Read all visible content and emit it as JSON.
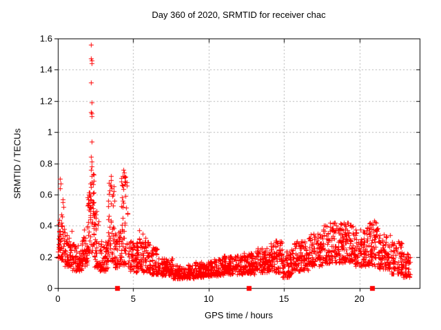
{
  "page": {
    "background": "#ffffff",
    "text_color": "#000000"
  },
  "chart_data": {
    "type": "scatter",
    "title": "Day 360 of 2020, SRMTID for receiver chac",
    "xlabel": "GPS time / hours",
    "ylabel": "SRMTID / TECUs",
    "xlim": [
      0,
      24
    ],
    "ylim": [
      0,
      1.6
    ],
    "grid": {
      "show": true,
      "color": "#b4b4b4",
      "style": "dotted"
    },
    "axis_color": "#000000",
    "legend": "none",
    "xticks": [
      {
        "v": 0,
        "label": "0"
      },
      {
        "v": 5,
        "label": "5"
      },
      {
        "v": 10,
        "label": "10"
      },
      {
        "v": 15,
        "label": "15"
      },
      {
        "v": 20,
        "label": "20"
      }
    ],
    "yticks": [
      {
        "v": 0,
        "label": "0"
      },
      {
        "v": 0.2,
        "label": "0.2"
      },
      {
        "v": 0.4,
        "label": "0.4"
      },
      {
        "v": 0.6,
        "label": "0.6"
      },
      {
        "v": 0.8,
        "label": "0.8"
      },
      {
        "v": 1,
        "label": "1"
      },
      {
        "v": 1.2,
        "label": "1.2"
      },
      {
        "v": 1.4,
        "label": "1.4"
      },
      {
        "v": 1.6,
        "label": "1.6"
      }
    ],
    "series": [
      {
        "name": "srmtid-scatter",
        "marker": "plus",
        "color": "#ff0000",
        "segment_fields": [
          "t_start",
          "t_end",
          "n_points",
          "y_min",
          "y_max",
          "skew_toward_min"
        ],
        "density_segments": [
          [
            0.0,
            0.35,
            45,
            0.18,
            0.5,
            1.5
          ],
          [
            0.35,
            0.9,
            55,
            0.14,
            0.38,
            1.7
          ],
          [
            0.9,
            1.6,
            70,
            0.11,
            0.29,
            1.5
          ],
          [
            1.6,
            1.95,
            40,
            0.14,
            0.38,
            1.4
          ],
          [
            1.95,
            2.15,
            30,
            0.2,
            0.62,
            1.2
          ],
          [
            2.15,
            2.4,
            35,
            0.22,
            0.74,
            1.2
          ],
          [
            2.4,
            2.75,
            40,
            0.13,
            0.5,
            1.8
          ],
          [
            2.75,
            3.3,
            55,
            0.11,
            0.3,
            1.5
          ],
          [
            3.3,
            3.75,
            50,
            0.17,
            0.68,
            1.6
          ],
          [
            3.75,
            4.15,
            45,
            0.13,
            0.38,
            1.5
          ],
          [
            4.15,
            4.65,
            55,
            0.15,
            0.72,
            1.7
          ],
          [
            4.65,
            5.3,
            65,
            0.1,
            0.31,
            1.4
          ],
          [
            5.3,
            6.1,
            80,
            0.1,
            0.32,
            1.5
          ],
          [
            6.1,
            6.6,
            50,
            0.09,
            0.26,
            1.5
          ],
          [
            6.6,
            7.6,
            95,
            0.08,
            0.19,
            1.4
          ],
          [
            7.6,
            9.1,
            140,
            0.06,
            0.15,
            1.3
          ],
          [
            9.1,
            10.1,
            95,
            0.07,
            0.17,
            1.3
          ],
          [
            10.1,
            11.0,
            90,
            0.08,
            0.19,
            1.3
          ],
          [
            11.0,
            12.1,
            105,
            0.09,
            0.21,
            1.3
          ],
          [
            12.1,
            13.1,
            100,
            0.09,
            0.23,
            1.3
          ],
          [
            13.1,
            14.1,
            100,
            0.1,
            0.26,
            1.3
          ],
          [
            14.1,
            14.9,
            80,
            0.1,
            0.31,
            1.4
          ],
          [
            14.9,
            15.5,
            60,
            0.07,
            0.24,
            1.5
          ],
          [
            15.5,
            16.6,
            105,
            0.11,
            0.3,
            1.4
          ],
          [
            16.6,
            17.6,
            100,
            0.14,
            0.35,
            1.3
          ],
          [
            17.6,
            19.6,
            200,
            0.16,
            0.42,
            1.3
          ],
          [
            19.6,
            20.4,
            80,
            0.14,
            0.38,
            1.4
          ],
          [
            20.4,
            21.2,
            80,
            0.14,
            0.43,
            1.4
          ],
          [
            21.2,
            22.1,
            90,
            0.12,
            0.35,
            1.5
          ],
          [
            22.1,
            22.9,
            80,
            0.09,
            0.3,
            1.5
          ],
          [
            22.9,
            23.35,
            50,
            0.07,
            0.22,
            1.4
          ]
        ],
        "peak_points": [
          [
            0.13,
            0.7
          ],
          [
            0.16,
            0.67
          ],
          [
            0.14,
            0.64
          ],
          [
            0.3,
            0.57
          ],
          [
            0.33,
            0.55
          ],
          [
            0.36,
            0.52
          ],
          [
            2.2,
            1.56
          ],
          [
            2.21,
            1.47
          ],
          [
            2.23,
            1.46
          ],
          [
            2.22,
            1.44
          ],
          [
            2.21,
            1.32
          ],
          [
            2.23,
            1.19
          ],
          [
            2.21,
            1.13
          ],
          [
            2.23,
            1.12
          ],
          [
            2.22,
            1.1
          ],
          [
            2.24,
            0.94
          ],
          [
            2.21,
            0.84
          ],
          [
            2.23,
            0.81
          ],
          [
            2.25,
            0.78
          ],
          [
            2.2,
            0.76
          ],
          [
            2.24,
            0.72
          ],
          [
            2.26,
            0.68
          ],
          [
            2.19,
            0.65
          ],
          [
            3.5,
            0.72
          ],
          [
            3.53,
            0.69
          ],
          [
            3.47,
            0.66
          ],
          [
            3.56,
            0.64
          ],
          [
            4.33,
            0.76
          ],
          [
            4.38,
            0.74
          ],
          [
            4.3,
            0.72
          ],
          [
            4.44,
            0.71
          ],
          [
            4.48,
            0.68
          ],
          [
            4.26,
            0.66
          ],
          [
            5.4,
            0.37
          ],
          [
            5.6,
            0.35
          ],
          [
            17.75,
            0.4
          ],
          [
            18.35,
            0.42
          ],
          [
            19.05,
            0.41
          ],
          [
            21.0,
            0.43
          ]
        ]
      },
      {
        "name": "axis-gap-markers",
        "marker": "filled-square",
        "color": "#ff0000",
        "points": [
          [
            3.95,
            0
          ],
          [
            12.65,
            0
          ],
          [
            20.85,
            0
          ]
        ]
      }
    ]
  }
}
